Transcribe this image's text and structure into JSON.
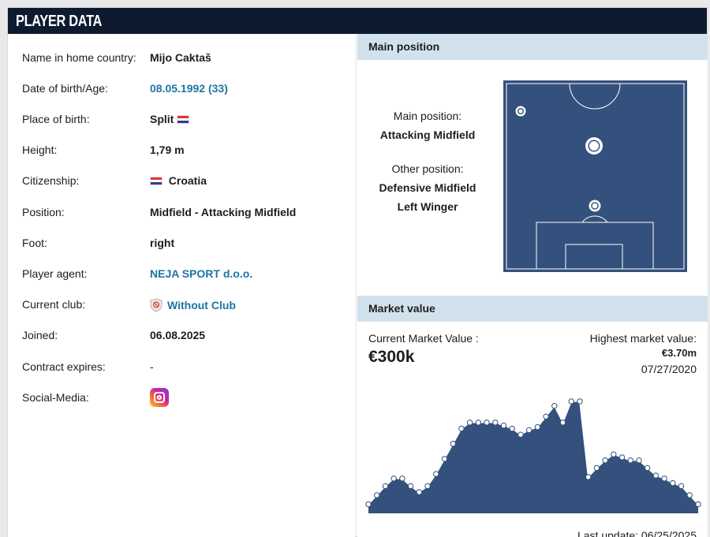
{
  "header": {
    "title": "PLAYER DATA"
  },
  "player": {
    "rows": [
      {
        "label": "Name in home country:",
        "value": "Mijo Caktaš"
      },
      {
        "label": "Date of birth/Age:",
        "value": "08.05.1992 (33)"
      },
      {
        "label": "Place of birth:",
        "value": "Split"
      },
      {
        "label": "Height:",
        "value": "1,79 m"
      },
      {
        "label": "Citizenship:",
        "value": "Croatia"
      },
      {
        "label": "Position:",
        "value": "Midfield - Attacking Midfield"
      },
      {
        "label": "Foot:",
        "value": "right"
      },
      {
        "label": "Player agent:",
        "value": "NEJA SPORT d.o.o."
      },
      {
        "label": "Current club:",
        "value": "Without Club"
      },
      {
        "label": "Joined:",
        "value": "06.08.2025"
      },
      {
        "label": "Contract expires:",
        "value": "-"
      },
      {
        "label": "Social-Media:",
        "value": ""
      }
    ],
    "flag_icon": "croatia-flag-icon",
    "club_icon": "without-club-icon",
    "social_icon": "instagram-icon"
  },
  "main_position": {
    "heading": "Main position",
    "main_label": "Main position:",
    "main_value": "Attacking Midfield",
    "other_label": "Other position:",
    "other_values": [
      "Defensive Midfield",
      "Left Winger"
    ],
    "pitch_color": "#34507c"
  },
  "market_value": {
    "heading": "Market value",
    "current_label": "Current Market Value :",
    "current_value": "€300k",
    "highest_label": "Highest market value:",
    "highest_value": "€3.70m",
    "highest_date": "07/27/2020",
    "last_update": "Last update: 06/25/2025",
    "chart_color": "#34507c"
  },
  "chart_data": {
    "type": "area",
    "title": "",
    "xlabel": "",
    "ylabel": "",
    "series": [
      {
        "values": [
          0.3,
          0.6,
          0.9,
          1.15,
          1.15,
          0.9,
          0.7,
          0.9,
          1.3,
          1.8,
          2.3,
          2.8,
          3.0,
          3.0,
          3.0,
          3.0,
          2.9,
          2.8,
          2.6,
          2.75,
          2.85,
          3.2,
          3.55,
          3.0,
          3.7,
          3.7,
          1.2,
          1.5,
          1.75,
          1.95,
          1.85,
          1.75,
          1.75,
          1.5,
          1.25,
          1.15,
          1.0,
          0.9,
          0.6,
          0.3
        ]
      }
    ],
    "y_units": "€m"
  }
}
